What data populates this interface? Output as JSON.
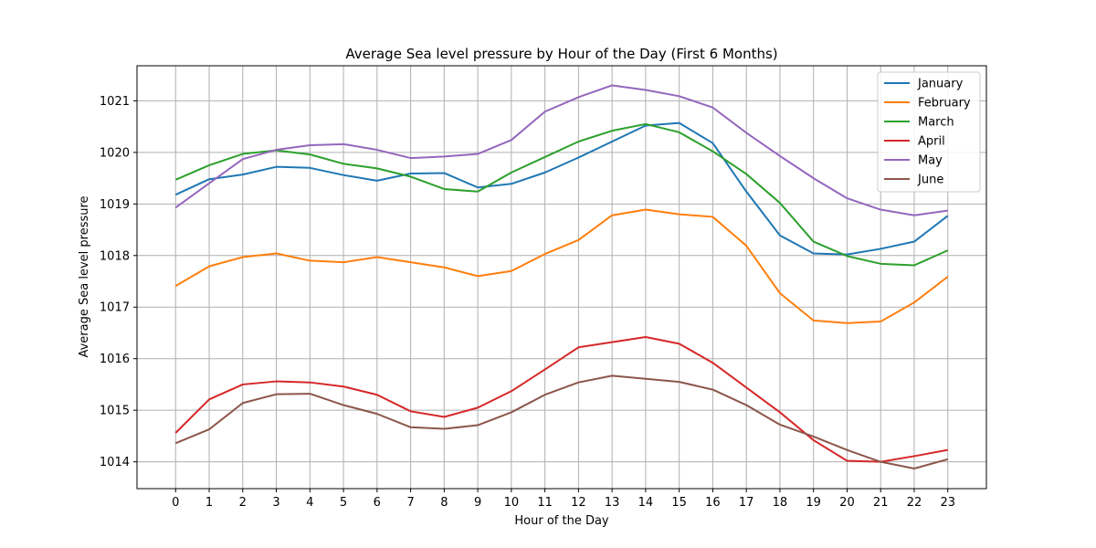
{
  "chart_data": {
    "type": "line",
    "title": "Average Sea level pressure by Hour of the Day (First 6 Months)",
    "xlabel": "Hour of the Day",
    "ylabel": "Average Sea level pressure",
    "x": [
      0,
      1,
      2,
      3,
      4,
      5,
      6,
      7,
      8,
      9,
      10,
      11,
      12,
      13,
      14,
      15,
      16,
      17,
      18,
      19,
      20,
      21,
      22,
      23
    ],
    "xlim": [
      -1.15,
      24.15
    ],
    "ylim": [
      1013.48,
      1021.68
    ],
    "yticks": [
      1014,
      1015,
      1016,
      1017,
      1018,
      1019,
      1020,
      1021
    ],
    "grid": true,
    "legend_position": "top-right",
    "series": [
      {
        "name": "January",
        "color": "#1f77b4",
        "values": [
          1019.18,
          1019.48,
          1019.57,
          1019.72,
          1019.7,
          1019.56,
          1019.45,
          1019.59,
          1019.6,
          1019.32,
          1019.39,
          1019.61,
          1019.9,
          1020.21,
          1020.52,
          1020.57,
          1020.18,
          1019.24,
          1018.39,
          1018.04,
          1018.02,
          1018.13,
          1018.27,
          1018.77
        ]
      },
      {
        "name": "February",
        "color": "#ff7f0e",
        "values": [
          1017.41,
          1017.79,
          1017.97,
          1018.04,
          1017.9,
          1017.87,
          1017.97,
          1017.87,
          1017.77,
          1017.6,
          1017.7,
          1018.03,
          1018.3,
          1018.78,
          1018.89,
          1018.8,
          1018.75,
          1018.19,
          1017.27,
          1016.74,
          1016.69,
          1016.72,
          1017.09,
          1017.59
        ]
      },
      {
        "name": "March",
        "color": "#2ca02c",
        "values": [
          1019.47,
          1019.75,
          1019.97,
          1020.04,
          1019.96,
          1019.78,
          1019.69,
          1019.53,
          1019.29,
          1019.24,
          1019.61,
          1019.91,
          1020.21,
          1020.42,
          1020.55,
          1020.39,
          1020.02,
          1019.58,
          1019.02,
          1018.27,
          1017.99,
          1017.84,
          1017.81,
          1018.1
        ]
      },
      {
        "name": "April",
        "color": "#d62728",
        "values": [
          1014.56,
          1015.21,
          1015.5,
          1015.56,
          1015.54,
          1015.46,
          1015.3,
          1014.98,
          1014.87,
          1015.05,
          1015.37,
          1015.79,
          1016.22,
          1016.32,
          1016.42,
          1016.29,
          1015.92,
          1015.44,
          1014.96,
          1014.42,
          1014.02,
          1014.0,
          1014.11,
          1014.23
        ]
      },
      {
        "name": "May",
        "color": "#9467bd",
        "values": [
          1018.93,
          1019.4,
          1019.87,
          1020.05,
          1020.14,
          1020.16,
          1020.05,
          1019.89,
          1019.92,
          1019.97,
          1020.24,
          1020.79,
          1021.07,
          1021.3,
          1021.21,
          1021.09,
          1020.87,
          1020.38,
          1019.93,
          1019.5,
          1019.11,
          1018.89,
          1018.78,
          1018.87
        ]
      },
      {
        "name": "June",
        "color": "#8c564b",
        "values": [
          1014.36,
          1014.63,
          1015.14,
          1015.31,
          1015.32,
          1015.1,
          1014.93,
          1014.67,
          1014.64,
          1014.71,
          1014.96,
          1015.3,
          1015.54,
          1015.67,
          1015.61,
          1015.55,
          1015.4,
          1015.1,
          1014.72,
          1014.49,
          1014.23,
          1014.0,
          1013.87,
          1014.05
        ]
      }
    ]
  }
}
